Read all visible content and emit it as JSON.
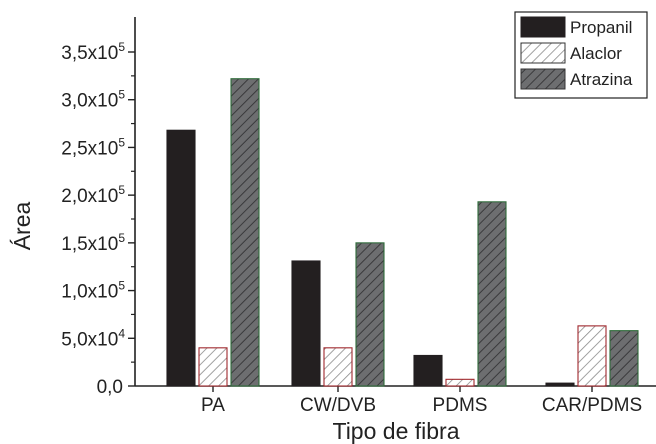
{
  "chart_data": {
    "type": "bar",
    "title": "",
    "xlabel": "Tipo de fibra",
    "ylabel": "Área",
    "categories": [
      "PA",
      "CW/DVB",
      "PDMS",
      "CAR/PDMS"
    ],
    "ylim": [
      0,
      350000
    ],
    "yticks": [
      {
        "value": 0,
        "mantissa": "0,0",
        "exp": ""
      },
      {
        "value": 50000,
        "mantissa": "5,0x10",
        "exp": "4"
      },
      {
        "value": 100000,
        "mantissa": "1,0x10",
        "exp": "5"
      },
      {
        "value": 150000,
        "mantissa": "1,5x10",
        "exp": "5"
      },
      {
        "value": 200000,
        "mantissa": "2,0x10",
        "exp": "5"
      },
      {
        "value": 250000,
        "mantissa": "2,5x10",
        "exp": "5"
      },
      {
        "value": 300000,
        "mantissa": "3,0x10",
        "exp": "5"
      },
      {
        "value": 350000,
        "mantissa": "3,5x10",
        "exp": "5"
      }
    ],
    "series": [
      {
        "name": "Propanil",
        "values": [
          268000,
          131000,
          32000,
          3000
        ],
        "color": "#231f20",
        "pattern": "solid"
      },
      {
        "name": "Alaclor",
        "values": [
          40000,
          40000,
          7000,
          63000
        ],
        "color": "#ffffff",
        "pattern": "hatch-light"
      },
      {
        "name": "Atrazina",
        "values": [
          322000,
          150000,
          193000,
          58000
        ],
        "color": "#6d6e70",
        "pattern": "hatch-dark"
      }
    ],
    "legend_position": "top-right",
    "grid": false
  }
}
